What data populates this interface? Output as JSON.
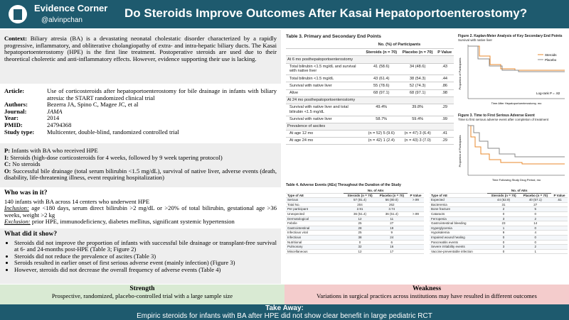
{
  "header": {
    "brand": "Evidence Corner",
    "handle": "@alvinpchan",
    "title": "Do Steroids Improve Outcomes After Kasai Hepatoportoenterostomy?"
  },
  "context": {
    "label": "Context:",
    "text": "Biliary atresia (BA) is a devastating neonatal cholestatic disorder characterized by a rapidly progressive, inflammatory, and obliterative cholangiopathy of extra- and intra-hepatic biliary ducts. The Kasai hepatoportoenterostomy (HPE) is the first line treatment. Postoperative steroids are used due to their theoretical choleretic and anti-inflammatory effects. However, evidence supporting their use is lacking."
  },
  "article": [
    {
      "label": "Article:",
      "value": "Use of corticosteroids after hepatoportoenterostomy for bile drainage in infants with biliary atresia: the START randomized clinical trial"
    },
    {
      "label": "Authors:",
      "value": "Bezerra JA, Spino C, Magee JC, et al"
    },
    {
      "label": "Journal:",
      "value": "JAMA"
    },
    {
      "label": "Year:",
      "value": "2014"
    },
    {
      "label": "PMID:",
      "value": "24794368"
    },
    {
      "label": "Study type:",
      "value": "Multicenter, double-blind, randomized controlled trial"
    }
  ],
  "pico": [
    {
      "label": "P:",
      "text": "Infants with BA who received HPE"
    },
    {
      "label": "I:",
      "text": "Steroids (high-dose corticosteroids for 4 weeks, followed by 9 week tapering protocol)"
    },
    {
      "label": "C:",
      "text": "No steroids"
    },
    {
      "label": "O:",
      "text": "Successful bile drainage (total serum bilirubin <1.5 mg/dL), survival of native liver, adverse events (death, disability, life-threatening illness, event requiring hospitalization)"
    }
  ],
  "who": {
    "heading": "Who was in it?",
    "summary": "140 infants with BA across 14 centers who underwent HPE",
    "inclusion_label": "Inclusion:",
    "inclusion": "age <180 days, serum direct bilirubin >2 mg/dL or >20% of total bilirubin, gestational age >36 weeks, weight >2 kg",
    "exclusion_label": "Exclusion:",
    "exclusion": "prior HPE, immunodeficiency, diabetes mellitus, significant systemic hypertension"
  },
  "what": {
    "heading": "What did it show?",
    "bullets": [
      "Steroids did not improve the proportion of infants with successful bile drainage or transplant-free survival at 6- and 24-months post-HPE (Table 3; Figure 2)",
      "Steroids did not reduce the prevalence of ascites (Table 3)",
      "Seroids resulted in earlier onset of first serious adverse event (mainly infection) (Figure 3)",
      "However, steroids did not decrease the overall frequency of adverse events (Table 4)"
    ]
  },
  "strength": {
    "heading": "Strength",
    "text": "Prospective, randomized, placebo-controlled trial with a large sample size"
  },
  "weakness": {
    "heading": "Weakness",
    "text": "Variations in surgical practices across institutions may have resulted in different outcomes"
  },
  "takeaway": {
    "heading": "Take Away:",
    "text": "Empiric steroids for infants with BA after HPE did not show clear benefit in large pediatric RCT"
  },
  "table3": {
    "title": "Table 3. Primary and Secondary End Points",
    "group": "No. (%) of Participants",
    "columns": [
      "Steroids (n = 70)",
      "Placebo (n = 70)",
      "P Value"
    ],
    "rows": [
      [
        "At 6 mo posthepatoportoenterostomy"
      ],
      [
        "Total bilirubin <1.5 mg/dL and survival with native liver",
        "41 (58.6)",
        "34 (48.6)",
        ".43"
      ],
      [
        "Total bilirubin <1.5 mg/dL",
        "43 (61.4)",
        "38 (54.3)",
        ".44"
      ],
      [
        "Survival with native liver",
        "55 (78.6)",
        "52 (74.3)",
        ".86"
      ],
      [
        "Alive",
        "68 (97.1)",
        "68 (97.1)",
        ".98"
      ],
      [
        "At 24 mo posthepatoportoenterostomy"
      ],
      [
        "Survival with native liver and total bilirubin <1.5 mg/dL",
        "49.4%",
        "39.8%",
        ".29"
      ],
      [
        "Survival with native liver",
        "58.7%",
        "59.4%",
        ".99"
      ],
      [
        "Prevalence of ascites"
      ],
      [
        "At age 12 mo",
        "(n = 52) 5 (9.6)",
        "(n = 47) 3 (6.4)",
        ".41"
      ],
      [
        "At age 24 mo",
        "(n = 42) 1 (2.4)",
        "(n = 43) 3 (7.0)",
        ".29"
      ]
    ]
  },
  "figure2": {
    "title": "Figure 2. Kaplan-Meier Analysis of Key Secondary End Points",
    "subtitle": "Survival with native liver",
    "legend": [
      "Steroids",
      "Placebo"
    ],
    "note": "Log-rank P = .82",
    "xlabel": "Time After Hepatoportoenterostomy, mo",
    "ylabel": "Proportion of Participants"
  },
  "figure3": {
    "title": "Figure 3. Time to First Serious Adverse Event",
    "subtitle": "Time to first serious adverse event after completion of treatment",
    "xlabel": "Time Following Study Drug Period, mo",
    "ylabel": "Proportion of Participants"
  },
  "table4": {
    "title": "Table 4. Adverse Events (AEs) Throughout the Duration of the Study",
    "group": "No. of AEs",
    "columns": [
      "Type of AE",
      "Steroids (n = 70)",
      "Placebo (n = 70)",
      "P Value"
    ],
    "left": [
      [
        "Serious",
        "57 (81.4)",
        "56 (80.0)",
        ">.99"
      ],
      [
        "Total No.",
        "204",
        "262",
        ""
      ],
      [
        "Per participant",
        "2.91",
        "3.74",
        ""
      ],
      [
        "Unexpected",
        "36 (51.4)",
        "36 (51.4)",
        ">.99"
      ],
      [
        "Dermatological",
        "12",
        "11",
        ""
      ],
      [
        "Febrile",
        "25",
        "27",
        ""
      ],
      [
        "Gastrointestinal",
        "28",
        "19",
        ""
      ],
      [
        "Infectious viral",
        "25",
        "9",
        ""
      ],
      [
        "Infectious",
        "38",
        "24",
        ""
      ],
      [
        "Nutritional",
        "0",
        "6",
        ""
      ],
      [
        "Pulmonary",
        "32",
        "16",
        ""
      ],
      [
        "Miscellaneous",
        "12",
        "17",
        ""
      ]
    ],
    "right": [
      [
        "Expected",
        "44 (62.9)",
        "40 (57.1)",
        ".61"
      ],
      [
        "Bacteremia",
        "31",
        "27",
        ""
      ],
      [
        "Bone fracture",
        "2",
        "5",
        ""
      ],
      [
        "Cataracts",
        "0",
        "0",
        ""
      ],
      [
        "Ferropenia",
        "3",
        "2",
        ""
      ],
      [
        "Gastrointestinal bleeding",
        "23",
        "14",
        ""
      ],
      [
        "Hyperglycemia",
        "1",
        "0",
        ""
      ],
      [
        "Hypokalemia",
        "9",
        "4",
        ""
      ],
      [
        "Impaired wound healing",
        "0",
        "0",
        ""
      ],
      [
        "Pancreatitis events",
        "0",
        "0",
        ""
      ],
      [
        "Severe irritability events",
        "3",
        "2",
        ""
      ],
      [
        "Vaccine-preventable infection",
        "0",
        "1",
        ""
      ]
    ]
  }
}
